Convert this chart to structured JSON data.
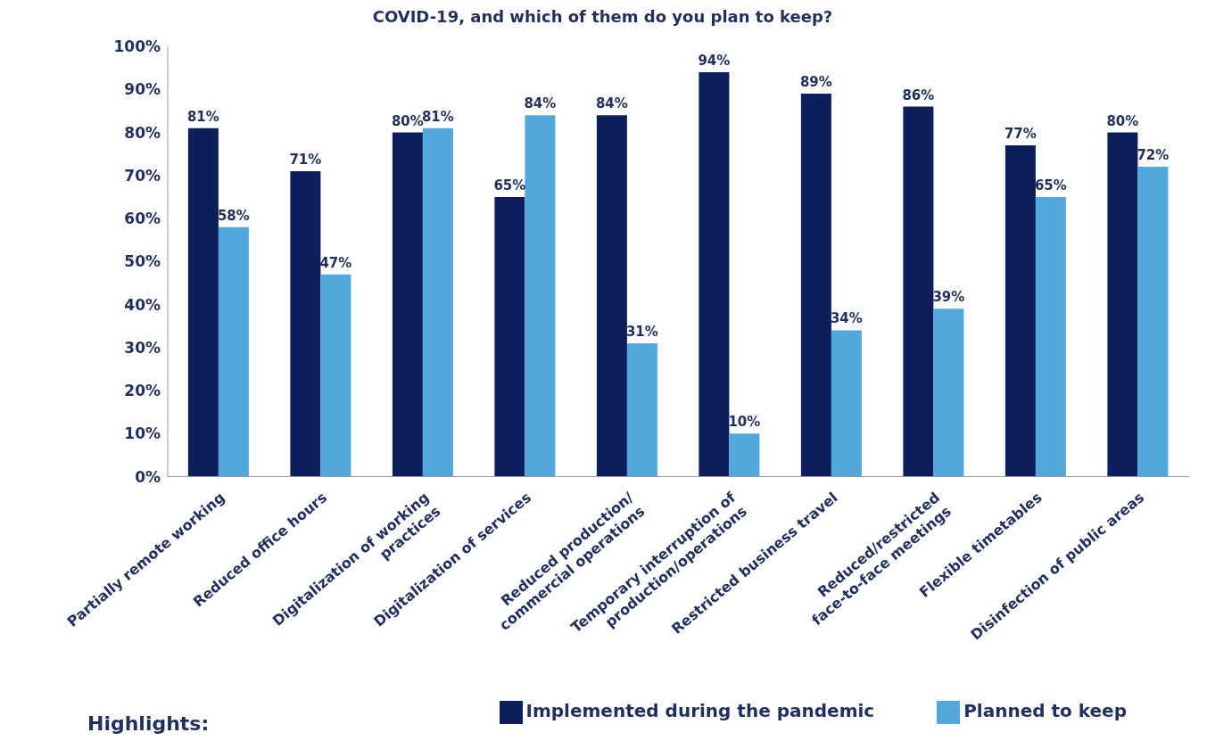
{
  "chart_data": {
    "type": "bar",
    "title": "COVID-19, and which of them do you plan to keep?",
    "categories": [
      "Partially remote working",
      "Reduced office hours",
      "Digitalization of working practices",
      "Digitalization of services",
      "Reduced production/ commercial operations",
      "Temporary interruption of production/operations",
      "Restricted business travel",
      "Reduced/restricted face-to-face meetings",
      "Flexible timetables",
      "Disinfection of public areas"
    ],
    "series": [
      {
        "name": "Implemented during the pandemic",
        "color": "#0c1f5c",
        "values": [
          81,
          71,
          80,
          65,
          84,
          94,
          89,
          86,
          77,
          80
        ],
        "value_labels": [
          "81%",
          "71%",
          "80%",
          "65%",
          "84%",
          "94%",
          "89%",
          "86%",
          "77%",
          "80%"
        ]
      },
      {
        "name": "Planned to keep",
        "color": "#50a8dc",
        "values": [
          58,
          47,
          81,
          84,
          31,
          10,
          34,
          39,
          65,
          72
        ],
        "value_labels": [
          "58%",
          "47%",
          "81%",
          "84%",
          "31%",
          "10%",
          "34%",
          "39%",
          "65%",
          "72%"
        ]
      }
    ],
    "ylim": [
      0,
      100
    ],
    "yticks": [
      {
        "value": 0,
        "label": "0%"
      },
      {
        "value": 10,
        "label": "10%"
      },
      {
        "value": 20,
        "label": "20%"
      },
      {
        "value": 30,
        "label": "30%"
      },
      {
        "value": 40,
        "label": "40%"
      },
      {
        "value": 50,
        "label": "50%"
      },
      {
        "value": 60,
        "label": "60%"
      },
      {
        "value": 70,
        "label": "70%"
      },
      {
        "value": 80,
        "label": "80%"
      },
      {
        "value": 90,
        "label": "90%"
      },
      {
        "value": 100,
        "label": "100%"
      }
    ],
    "grid": false,
    "legend": "bottom",
    "annotations": [
      "Highlights:"
    ]
  }
}
